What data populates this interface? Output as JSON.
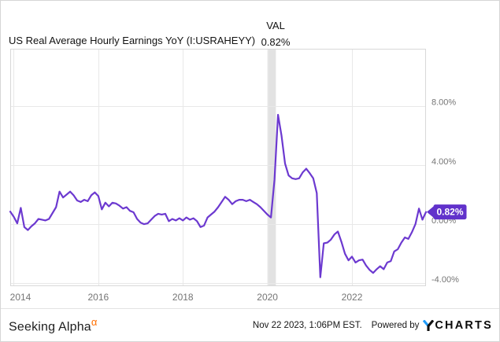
{
  "header": {
    "title": "US Real Average Hourly Earnings YoY (I:USRAHEYY)",
    "val_label": "VAL",
    "val_value": "0.82%"
  },
  "chart_data": {
    "type": "line",
    "title": "US Real Average Hourly Earnings YoY (I:USRAHEYY)",
    "xlabel": "",
    "ylabel": "",
    "grid": true,
    "legend": "none",
    "x_ticks": [
      2014,
      2016,
      2018,
      2020,
      2022
    ],
    "x_range": [
      2013.9167,
      2023.75
    ],
    "y_ticks": [
      {
        "value": 8,
        "label": "8.00%"
      },
      {
        "value": 4,
        "label": "4.00%"
      },
      {
        "value": 0,
        "label": "0.00%"
      },
      {
        "value": -4,
        "label": "-4.00%"
      }
    ],
    "y_range": [
      -4.2,
      11.87
    ],
    "recession_band": {
      "start": 2020.0,
      "end": 2020.2
    },
    "current_value": 0.82,
    "current_value_label": "0.82%",
    "series": [
      {
        "name": "US Real Average Hourly Earnings YoY",
        "unit": "%",
        "interval": "monthly",
        "start": "2013-12",
        "values": [
          0.85,
          0.5,
          0.05,
          1.1,
          -0.2,
          -0.4,
          -0.15,
          0.05,
          0.35,
          0.3,
          0.25,
          0.35,
          0.75,
          1.15,
          2.2,
          1.8,
          2.0,
          2.2,
          1.95,
          1.6,
          1.5,
          1.65,
          1.55,
          1.95,
          2.15,
          1.9,
          1.0,
          1.45,
          1.2,
          1.45,
          1.4,
          1.25,
          1.05,
          1.15,
          0.9,
          0.8,
          0.35,
          0.1,
          0.0,
          0.05,
          0.3,
          0.55,
          0.7,
          0.65,
          0.7,
          0.2,
          0.35,
          0.25,
          0.4,
          0.25,
          0.45,
          0.3,
          0.4,
          0.2,
          -0.2,
          -0.1,
          0.45,
          0.65,
          0.85,
          1.15,
          1.5,
          1.85,
          1.65,
          1.35,
          1.55,
          1.65,
          1.65,
          1.55,
          1.65,
          1.5,
          1.35,
          1.15,
          0.9,
          0.65,
          0.45,
          3.0,
          7.4,
          6.0,
          4.1,
          3.3,
          3.1,
          3.05,
          3.1,
          3.5,
          3.75,
          3.45,
          3.1,
          2.1,
          -3.6,
          -1.3,
          -1.25,
          -1.05,
          -0.7,
          -0.5,
          -1.2,
          -2.0,
          -2.45,
          -2.2,
          -2.6,
          -2.45,
          -2.4,
          -2.8,
          -3.1,
          -3.3,
          -3.05,
          -2.85,
          -3.05,
          -2.6,
          -2.5,
          -1.85,
          -1.7,
          -1.25,
          -0.9,
          -1.0,
          -0.55,
          0.0,
          1.05,
          0.3,
          0.82
        ]
      }
    ]
  },
  "colors": {
    "line": "#6c39d0",
    "badge_bg": "#6132cb",
    "badge_text": "#ffffff",
    "recession_band": "#e2e2e2",
    "gridline": "#e8e8e8",
    "plot_border": "#d8d8d8",
    "axis_text": "#757575",
    "alpha_orange": "#ff6f00",
    "ycharts_blue": "#1e9bfa"
  },
  "footer": {
    "brand": "Seeking Alpha",
    "brand_superscript": "α",
    "timestamp": "Nov 22 2023, 1:06PM EST.",
    "powered_by": "Powered by",
    "charts_brand": "CHARTS",
    "charts_brand_y": "Y"
  }
}
